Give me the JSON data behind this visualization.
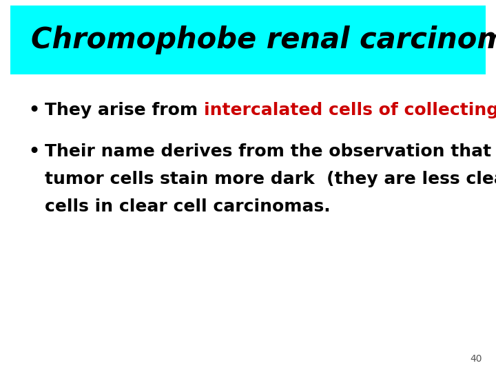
{
  "title": "Chromophobe renal carcinoma",
  "title_bg_color": "#00FFFF",
  "title_font_size": 30,
  "title_font_color": "#000000",
  "bullet1_prefix": "They arise from ",
  "bullet1_highlight": "intercalated cells of collecting ducts",
  "bullet1_suffix": ".",
  "bullet1_highlight_color": "#CC0000",
  "bullet2_line1": "Their name derives from the observation that the",
  "bullet2_line2": "tumor cells stain more dark  (they are less clear) than",
  "bullet2_line3": "cells in clear cell carcinomas.",
  "bullet_font_size": 18,
  "bullet_color": "#000000",
  "bg_color": "#FFFFFF",
  "page_number": "40",
  "page_number_fontsize": 10
}
